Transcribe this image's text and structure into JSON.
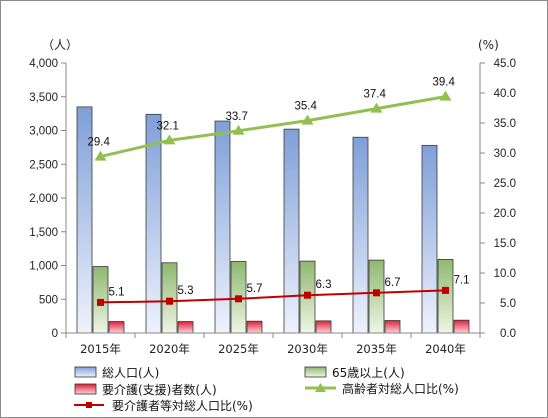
{
  "chart_data": {
    "type": "bar",
    "categories": [
      "2015年",
      "2020年",
      "2025年",
      "2030年",
      "2035年",
      "2040年"
    ],
    "y_left": {
      "unit_label": "（人）",
      "range": [
        0,
        4000
      ],
      "ticks": [
        "0",
        "500",
        "1,000",
        "1,500",
        "2,000",
        "2,500",
        "3,000",
        "3,500",
        "4,000"
      ]
    },
    "y_right": {
      "unit_label": "(%)",
      "range": [
        0,
        45
      ],
      "ticks": [
        "0.0",
        "5.0",
        "10.0",
        "15.0",
        "20.0",
        "25.0",
        "30.0",
        "35.0",
        "40.0",
        "45.0"
      ]
    },
    "series": [
      {
        "name": "総人口(人)",
        "type": "bar",
        "axis": "left",
        "color": "#7f9fd8",
        "values": [
          3350,
          3240,
          3140,
          3020,
          2900,
          2780
        ]
      },
      {
        "name": "65歳以上(人)",
        "type": "bar",
        "axis": "left",
        "color": "#8fb870",
        "values": [
          985,
          1040,
          1060,
          1065,
          1080,
          1090
        ]
      },
      {
        "name": "要介護(支援)者数(人)",
        "type": "bar",
        "axis": "left",
        "color": "#e0203a",
        "values": [
          170,
          170,
          175,
          180,
          185,
          190
        ]
      },
      {
        "name": "高齢者対総人口比(%)",
        "type": "line",
        "axis": "right",
        "color": "#92c050",
        "marker": "triangle",
        "values": [
          29.4,
          32.1,
          33.7,
          35.4,
          37.4,
          39.4
        ],
        "labels": [
          "29.4",
          "32.1",
          "33.7",
          "35.4",
          "37.4",
          "39.4"
        ]
      },
      {
        "name": "要介護者等対総人口比(%)",
        "type": "line",
        "axis": "right",
        "color": "#c00000",
        "marker": "square",
        "values": [
          5.1,
          5.3,
          5.7,
          6.3,
          6.7,
          7.1
        ],
        "labels": [
          "5.1",
          "5.3",
          "5.7",
          "6.3",
          "6.7",
          "7.1"
        ]
      }
    ],
    "grid": false,
    "legend_position": "bottom"
  }
}
